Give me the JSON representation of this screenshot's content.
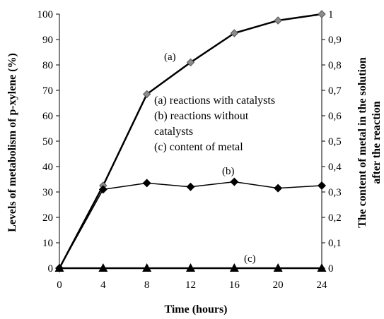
{
  "chart_data": {
    "type": "line",
    "x": [
      0,
      4,
      8,
      12,
      16,
      20,
      24
    ],
    "xlabel": "Time (hours)",
    "ylabel_left": "Levels of metabolism of  p-xylene (%)",
    "ylabel_right_lines": [
      "The content of metal in the solution",
      "after the reaction"
    ],
    "xlim": [
      0,
      24
    ],
    "ylim_left": [
      0,
      100
    ],
    "ylim_right": [
      0,
      1
    ],
    "x_ticks": [
      "0",
      "4",
      "8",
      "12",
      "16",
      "20",
      "24"
    ],
    "y_left_ticks": [
      "0",
      "10",
      "20",
      "30",
      "40",
      "50",
      "60",
      "70",
      "80",
      "90",
      "100"
    ],
    "y_right_ticks": [
      "0",
      "0,1",
      "0,2",
      "0,3",
      "0,4",
      "0,5",
      "0,6",
      "0,7",
      "0,8",
      "0,9",
      "1"
    ],
    "grid": false,
    "series": [
      {
        "name": "(a) reactions with catalysts",
        "label": "(a)",
        "axis": "left",
        "marker": "diamond-grey",
        "values": [
          0,
          32.5,
          68.5,
          81,
          92.5,
          97.5,
          100
        ]
      },
      {
        "name": "(b) reactions without catalysts",
        "label": "(b)",
        "axis": "right",
        "marker": "diamond-black",
        "values": [
          0,
          0.31,
          0.335,
          0.32,
          0.34,
          0.315,
          0.325
        ]
      },
      {
        "name": "(c) content of metal",
        "label": "(c)",
        "axis": "right",
        "marker": "triangle-black",
        "values": [
          0,
          0,
          0,
          0,
          0,
          0,
          0
        ]
      }
    ],
    "legend": {
      "placement": "center",
      "lines": [
        "(a) reactions with catalysts",
        "(b) reactions without",
        "catalysts",
        "(c) content of metal"
      ]
    },
    "colors": {
      "line": "#000000",
      "marker_a": "#8c8c8c"
    }
  }
}
